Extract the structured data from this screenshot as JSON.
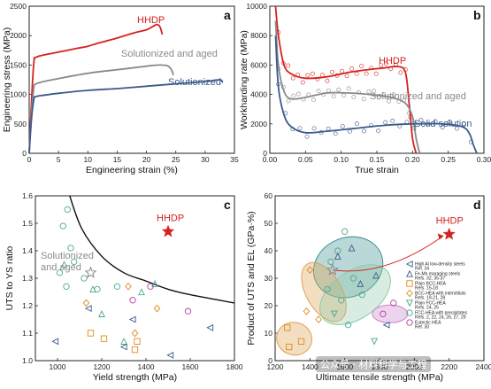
{
  "colors": {
    "red": "#d4231f",
    "gray": "#8a8a8a",
    "blue": "#3b5a8c",
    "black": "#111111",
    "frame": "#222222"
  },
  "watermark": "公众号 · 材料科学与工程",
  "chart_data": [
    {
      "panel_label": "a",
      "type": "line",
      "xlabel": "Engineering strain (%)",
      "ylabel": "Engineering stress (MPa)",
      "xlim": [
        0,
        35
      ],
      "ylim": [
        0,
        2500
      ],
      "xticks": [
        0,
        5,
        10,
        15,
        20,
        25,
        30,
        35
      ],
      "yticks": [
        0,
        500,
        1000,
        1500,
        2000,
        2500
      ],
      "series": [
        {
          "name": "HHDP",
          "color": "#d4231f",
          "x": [
            0,
            0.4,
            0.8,
            1,
            2,
            5,
            8,
            10,
            12,
            14,
            16,
            18,
            20,
            21,
            21.8,
            22.3,
            22.7
          ],
          "y": [
            0,
            900,
            1550,
            1620,
            1660,
            1720,
            1780,
            1820,
            1880,
            1930,
            1990,
            2050,
            2100,
            2150,
            2190,
            2150,
            2020
          ]
        },
        {
          "name": "Solutionized and aged",
          "color": "#8a8a8a",
          "x": [
            0,
            0.4,
            0.8,
            1,
            2,
            5,
            10,
            15,
            20,
            22,
            23.5,
            24.2,
            24.6
          ],
          "y": [
            0,
            700,
            1120,
            1170,
            1210,
            1270,
            1360,
            1420,
            1480,
            1500,
            1490,
            1430,
            1330
          ]
        },
        {
          "name": "Solutionized",
          "color": "#3b5a8c",
          "x": [
            0,
            0.4,
            0.8,
            1,
            2,
            5,
            10,
            15,
            20,
            25,
            30,
            32.5,
            33
          ],
          "y": [
            0,
            600,
            920,
            960,
            980,
            1020,
            1070,
            1100,
            1140,
            1180,
            1220,
            1250,
            1200
          ]
        }
      ],
      "annotations": [
        "HHDP",
        "Solutionized and aged",
        "Solutionized"
      ]
    },
    {
      "panel_label": "b",
      "type": "line",
      "xlabel": "True strain",
      "ylabel": "Workharding rate (MPa)",
      "xlim": [
        0,
        0.3
      ],
      "ylim": [
        0,
        10000
      ],
      "xticks": [
        0.0,
        0.05,
        0.1,
        0.15,
        0.2,
        0.25,
        0.3
      ],
      "xtick_labels": [
        "0.00",
        "0.05",
        "0.10",
        "0.15",
        "0.20",
        "0.25",
        "0.30"
      ],
      "yticks": [
        0,
        2000,
        4000,
        6000,
        8000,
        10000
      ],
      "series": [
        {
          "name": "HHDP",
          "color": "#d4231f",
          "x": [
            0.008,
            0.012,
            0.02,
            0.03,
            0.05,
            0.08,
            0.11,
            0.14,
            0.16,
            0.18,
            0.19,
            0.195,
            0.2,
            0.205
          ],
          "y": [
            10000,
            8000,
            6000,
            5400,
            5100,
            5200,
            5500,
            5700,
            5800,
            5900,
            5500,
            3500,
            1000,
            0
          ]
        },
        {
          "name": "Solutionized and aged",
          "color": "#8a8a8a",
          "x": [
            0.008,
            0.012,
            0.02,
            0.03,
            0.05,
            0.08,
            0.11,
            0.14,
            0.17,
            0.19,
            0.2,
            0.205,
            0.21
          ],
          "y": [
            9000,
            6000,
            4200,
            3700,
            3800,
            4100,
            4100,
            4000,
            3800,
            3400,
            2500,
            1000,
            0
          ]
        },
        {
          "name": "Solid solution",
          "color": "#3b5a8c",
          "x": [
            0.008,
            0.012,
            0.02,
            0.03,
            0.05,
            0.08,
            0.12,
            0.16,
            0.2,
            0.24,
            0.27,
            0.28,
            0.285,
            0.29
          ],
          "y": [
            8000,
            4500,
            2600,
            1800,
            1400,
            1500,
            1700,
            1900,
            2000,
            2000,
            1800,
            1300,
            600,
            0
          ]
        }
      ],
      "annotations": [
        "HHDP",
        "Solutionized and aged",
        "Solid solution"
      ]
    },
    {
      "panel_label": "c",
      "type": "scatter",
      "xlabel": "Yield strength (MPa)",
      "ylabel": "UTS to YS ratio",
      "xlim": [
        900,
        1800
      ],
      "ylim": [
        1.0,
        1.6
      ],
      "xticks": [
        1000,
        1200,
        1400,
        1600,
        1800
      ],
      "yticks": [
        1.0,
        1.1,
        1.2,
        1.3,
        1.4,
        1.5,
        1.6
      ],
      "ytick_labels": [
        "1.0",
        "1.1",
        "1.2",
        "1.3",
        "1.4",
        "1.5",
        "1.6"
      ],
      "boundary": {
        "x": [
          1055,
          1110,
          1200,
          1300,
          1400,
          1500,
          1600,
          1800
        ],
        "y": [
          1.6,
          1.48,
          1.38,
          1.32,
          1.29,
          1.26,
          1.24,
          1.21
        ]
      },
      "highlight_hhdp": {
        "label": "HHDP",
        "x": 1500,
        "y": 1.47
      },
      "highlight_sa": {
        "label": "Solutionized and aged",
        "x": 1150,
        "y": 1.32
      },
      "points": [
        {
          "x": 1045,
          "y": 1.55,
          "m": "circle",
          "c": "#4aa88a"
        },
        {
          "x": 1025,
          "y": 1.49,
          "m": "circle",
          "c": "#4aa88a"
        },
        {
          "x": 1060,
          "y": 1.41,
          "m": "circle",
          "c": "#4aa88a"
        },
        {
          "x": 1075,
          "y": 1.36,
          "m": "circle",
          "c": "#4aa88a"
        },
        {
          "x": 1120,
          "y": 1.3,
          "m": "circle",
          "c": "#4aa88a"
        },
        {
          "x": 1040,
          "y": 1.27,
          "m": "circle",
          "c": "#4aa88a"
        },
        {
          "x": 1180,
          "y": 1.26,
          "m": "circle",
          "c": "#4aa88a"
        },
        {
          "x": 1270,
          "y": 1.27,
          "m": "circle",
          "c": "#4aa88a"
        },
        {
          "x": 1010,
          "y": 1.32,
          "m": "circle",
          "c": "#4aa88a"
        },
        {
          "x": 1030,
          "y": 1.35,
          "m": "triangle",
          "c": "#4aa88a"
        },
        {
          "x": 1160,
          "y": 1.26,
          "m": "triangle",
          "c": "#4aa88a"
        },
        {
          "x": 1200,
          "y": 1.17,
          "m": "triangle",
          "c": "#4aa88a"
        },
        {
          "x": 1300,
          "y": 1.07,
          "m": "triangle",
          "c": "#4aa88a"
        },
        {
          "x": 1380,
          "y": 1.25,
          "m": "triangle",
          "c": "#4aa88a"
        },
        {
          "x": 1440,
          "y": 1.28,
          "m": "triangle",
          "c": "#4aa88a"
        },
        {
          "x": 1140,
          "y": 1.19,
          "m": "triangle-left",
          "c": "#3b5a8c"
        },
        {
          "x": 1340,
          "y": 1.15,
          "m": "triangle-left",
          "c": "#3b5a8c"
        },
        {
          "x": 1690,
          "y": 1.12,
          "m": "triangle-left",
          "c": "#3b5a8c"
        },
        {
          "x": 990,
          "y": 1.07,
          "m": "triangle-left",
          "c": "#3b5a8c"
        },
        {
          "x": 1510,
          "y": 1.02,
          "m": "triangle-left",
          "c": "#3b5a8c"
        },
        {
          "x": 1300,
          "y": 1.05,
          "m": "triangle-left",
          "c": "#3b5a8c"
        },
        {
          "x": 1130,
          "y": 1.21,
          "m": "diamond",
          "c": "#e08a1c"
        },
        {
          "x": 1350,
          "y": 1.1,
          "m": "diamond",
          "c": "#e08a1c"
        },
        {
          "x": 1450,
          "y": 1.19,
          "m": "diamond",
          "c": "#e08a1c"
        },
        {
          "x": 1320,
          "y": 1.27,
          "m": "diamond",
          "c": "#e08a1c"
        },
        {
          "x": 1150,
          "y": 1.1,
          "m": "square",
          "c": "#e08a1c"
        },
        {
          "x": 1210,
          "y": 1.08,
          "m": "square",
          "c": "#e08a1c"
        },
        {
          "x": 1360,
          "y": 1.07,
          "m": "square",
          "c": "#e08a1c"
        },
        {
          "x": 1340,
          "y": 1.22,
          "m": "circle",
          "c": "#b23aa8"
        },
        {
          "x": 1420,
          "y": 1.27,
          "m": "circle",
          "c": "#b23aa8"
        },
        {
          "x": 1590,
          "y": 1.18,
          "m": "circle",
          "c": "#b23aa8"
        },
        {
          "x": 1350,
          "y": 1.04,
          "m": "square",
          "c": "#e08a1c"
        }
      ]
    },
    {
      "panel_label": "d",
      "type": "scatter",
      "xlabel": "Ultimate tensile strength (MPa)",
      "ylabel": "Product of UTS and EL (GPa·%)",
      "xlim": [
        1200,
        2400
      ],
      "ylim": [
        0,
        60
      ],
      "xticks": [
        1200,
        1400,
        1600,
        1800,
        2000,
        2200,
        2400
      ],
      "yticks": [
        0,
        10,
        20,
        30,
        40,
        50,
        60
      ],
      "highlight_hhdp": {
        "label": "HHDP",
        "x": 2200,
        "y": 46
      },
      "highlight_sa": {
        "x": 1530,
        "y": 33
      },
      "legend": [
        {
          "m": "triangle-left",
          "c": "#3b5a8c",
          "text": "High Al low-density steels",
          "ref": "Ref. 34"
        },
        {
          "m": "triangle",
          "c": "#3b5a8c",
          "text": "Fe-Mn maraging steels",
          "ref": "Refs. 32, 35-37"
        },
        {
          "m": "square",
          "c": "#e08a1c",
          "text": "Plain BCC-HEA",
          "ref": "Refs. 15-18"
        },
        {
          "m": "diamond",
          "c": "#e08a1c",
          "text": "BCC-HEA with interstitials",
          "ref": "Refs. 19-21, 28"
        },
        {
          "m": "triangle-down",
          "c": "#4aa88a",
          "text": "Plain FCC-HEA",
          "ref": "Refs. 24, 25"
        },
        {
          "m": "circle",
          "c": "#4aa88a",
          "text": "FCC-HEA with precipitates",
          "ref": "Refs. 2, 22, 24, 26, 27, 29"
        },
        {
          "m": "circle",
          "c": "#b23aa8",
          "text": "Eutectic HEA",
          "ref": "Ref. 30"
        }
      ],
      "points": [
        {
          "x": 1600,
          "y": 47,
          "m": "circle",
          "c": "#4aa88a"
        },
        {
          "x": 1560,
          "y": 40,
          "m": "circle",
          "c": "#4aa88a"
        },
        {
          "x": 1520,
          "y": 36,
          "m": "circle",
          "c": "#4aa88a"
        },
        {
          "x": 1650,
          "y": 30,
          "m": "circle",
          "c": "#4aa88a"
        },
        {
          "x": 1700,
          "y": 24,
          "m": "circle",
          "c": "#4aa88a"
        },
        {
          "x": 1580,
          "y": 22,
          "m": "circle",
          "c": "#4aa88a"
        },
        {
          "x": 1500,
          "y": 26,
          "m": "circle",
          "c": "#4aa88a"
        },
        {
          "x": 1620,
          "y": 13,
          "m": "circle",
          "c": "#4aa88a"
        },
        {
          "x": 1560,
          "y": 38,
          "m": "triangle",
          "c": "#3b5a8c"
        },
        {
          "x": 1640,
          "y": 41,
          "m": "triangle",
          "c": "#3b5a8c"
        },
        {
          "x": 1780,
          "y": 31,
          "m": "triangle",
          "c": "#3b5a8c"
        },
        {
          "x": 1690,
          "y": 28,
          "m": "triangle",
          "c": "#3b5a8c"
        },
        {
          "x": 1400,
          "y": 33,
          "m": "diamond",
          "c": "#e08a1c"
        },
        {
          "x": 1450,
          "y": 15,
          "m": "diamond",
          "c": "#e08a1c"
        },
        {
          "x": 1380,
          "y": 18,
          "m": "diamond",
          "c": "#e08a1c"
        },
        {
          "x": 1270,
          "y": 12,
          "m": "square",
          "c": "#e08a1c"
        },
        {
          "x": 1280,
          "y": 5,
          "m": "square",
          "c": "#e08a1c"
        },
        {
          "x": 1350,
          "y": 7,
          "m": "square",
          "c": "#e08a1c"
        },
        {
          "x": 1820,
          "y": 17,
          "m": "circle",
          "c": "#b23aa8"
        },
        {
          "x": 1880,
          "y": 21,
          "m": "circle",
          "c": "#b23aa8"
        },
        {
          "x": 1840,
          "y": 13,
          "m": "triangle-left",
          "c": "#3b5a8c"
        },
        {
          "x": 1770,
          "y": 7,
          "m": "triangle-down",
          "c": "#4aa88a"
        },
        {
          "x": 1540,
          "y": 17,
          "m": "triangle-down",
          "c": "#4aa88a"
        }
      ]
    }
  ]
}
